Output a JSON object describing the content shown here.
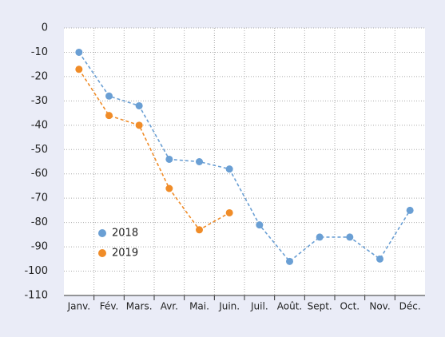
{
  "chart_data": {
    "type": "line",
    "categories": [
      "Janv.",
      "Fév.",
      "Mars.",
      "Avr.",
      "Mai.",
      "Juin.",
      "Juil.",
      "Août.",
      "Sept.",
      "Oct.",
      "Nov.",
      "Déc."
    ],
    "series": [
      {
        "name": "2018",
        "color": "#6a9fd4",
        "values": [
          -10,
          -28,
          -32,
          -54,
          -55,
          -58,
          -81,
          -96,
          -86,
          -86,
          -95,
          -75
        ]
      },
      {
        "name": "2019",
        "color": "#f08c28",
        "values": [
          -17,
          -36,
          -40,
          -66,
          -83,
          -76,
          null,
          null,
          null,
          null,
          null,
          null
        ]
      }
    ],
    "ylim": [
      -110,
      0
    ],
    "yticks": [
      -110,
      -100,
      -90,
      -80,
      -70,
      -60,
      -50,
      -40,
      -30,
      -20,
      -10,
      0
    ],
    "grid": true,
    "legend": "lower left"
  }
}
